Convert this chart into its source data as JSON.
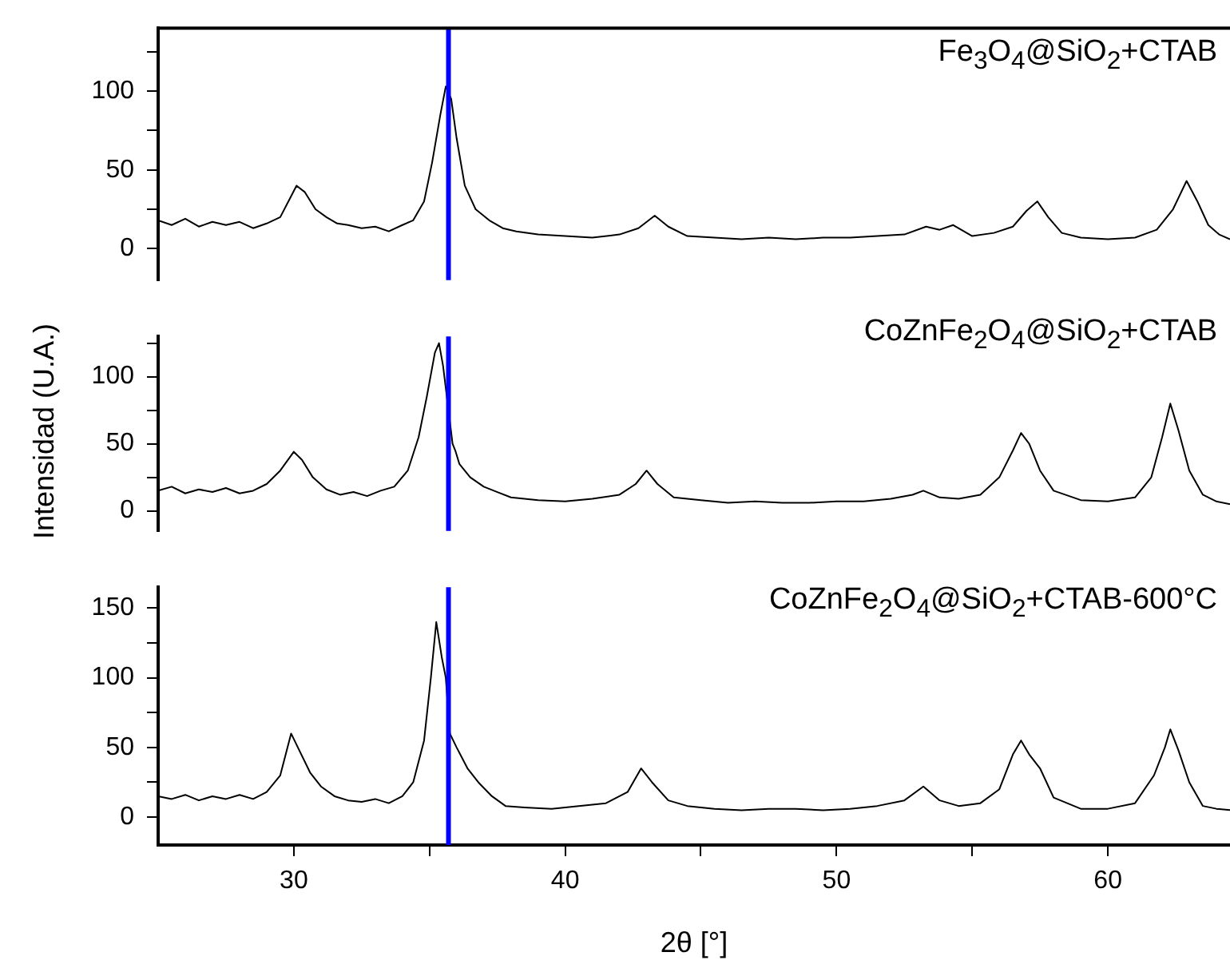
{
  "chart_data": [
    {
      "type": "line",
      "xlim": [
        25,
        64.5
      ],
      "ylim": [
        -20,
        140
      ],
      "yticks": [
        0,
        {
          "value": 25,
          "label": null
        },
        50,
        {
          "value": 75,
          "label": null
        },
        100,
        {
          "value": 125,
          "label": null
        }
      ],
      "tick_labels": "y",
      "grid": false,
      "legend": false,
      "marker": "none",
      "ref_lines": [
        {
          "axis": "x",
          "value": 35.7,
          "color": "#0000ff"
        }
      ],
      "series": [
        {
          "name": "Fe$_{3}$O$_{4}$@SiO$_{2}$+CTAB",
          "color": "#000000",
          "x": [
            25,
            25.5,
            26,
            26.5,
            27,
            27.5,
            28,
            28.5,
            29,
            29.5,
            29.8,
            30.1,
            30.4,
            30.8,
            31.2,
            31.6,
            32,
            32.5,
            33,
            33.5,
            34,
            34.4,
            34.8,
            35.1,
            35.4,
            35.6,
            35.8,
            36,
            36.3,
            36.7,
            37.2,
            37.7,
            38.2,
            39,
            40,
            41,
            42,
            42.7,
            43.3,
            43.8,
            44.5,
            45.5,
            46.5,
            47.5,
            48.5,
            49.5,
            50.5,
            51.5,
            52.5,
            53.3,
            53.8,
            54.3,
            55,
            55.8,
            56.5,
            57,
            57.4,
            57.8,
            58.3,
            59,
            60,
            61,
            61.8,
            62.4,
            62.9,
            63.3,
            63.7,
            64.1,
            64.5
          ],
          "values": [
            18,
            15,
            19,
            14,
            17,
            15,
            17,
            13,
            16,
            20,
            30,
            40,
            36,
            25,
            20,
            16,
            15,
            13,
            14,
            11,
            15,
            18,
            30,
            55,
            85,
            103,
            95,
            70,
            40,
            25,
            18,
            13,
            11,
            9,
            8,
            7,
            9,
            13,
            21,
            14,
            8,
            7,
            6,
            7,
            6,
            7,
            7,
            8,
            9,
            14,
            12,
            15,
            8,
            10,
            14,
            24,
            30,
            20,
            10,
            7,
            6,
            7,
            12,
            25,
            43,
            30,
            15,
            9,
            6
          ]
        }
      ]
    },
    {
      "type": "line",
      "xlim": [
        25,
        64.5
      ],
      "ylim": [
        -15,
        130
      ],
      "yticks": [
        0,
        {
          "value": 25,
          "label": null
        },
        50,
        {
          "value": 75,
          "label": null
        },
        100,
        {
          "value": 125,
          "label": null
        }
      ],
      "tick_labels": "y",
      "grid": false,
      "legend": false,
      "marker": "none",
      "ylabel": "Intensidad (U.A.)",
      "ref_lines": [
        {
          "axis": "x",
          "value": 35.7,
          "color": "#0000ff"
        }
      ],
      "series": [
        {
          "name": "CoZnFe$_{2}$O$_{4}$@SiO$_{2}$+CTAB",
          "color": "#000000",
          "x": [
            25,
            25.5,
            26,
            26.5,
            27,
            27.5,
            28,
            28.5,
            29,
            29.5,
            30,
            30.3,
            30.7,
            31.2,
            31.7,
            32.2,
            32.7,
            33.2,
            33.7,
            34.2,
            34.6,
            34.9,
            35.2,
            35.35,
            35.5,
            35.85,
            35.95,
            36.1,
            36.5,
            37,
            37.5,
            38,
            39,
            40,
            41,
            42,
            42.6,
            43,
            43.4,
            44,
            45,
            46,
            47,
            48,
            49,
            50,
            51,
            52,
            52.8,
            53.2,
            53.8,
            54.5,
            55.3,
            56,
            56.5,
            56.8,
            57.1,
            57.5,
            58,
            59,
            60,
            61,
            61.6,
            62,
            62.3,
            62.6,
            63,
            63.5,
            64,
            64.5
          ],
          "values": [
            15,
            18,
            13,
            16,
            14,
            17,
            13,
            15,
            20,
            30,
            44,
            38,
            25,
            16,
            12,
            14,
            11,
            15,
            18,
            30,
            55,
            85,
            118,
            125,
            108,
            50,
            45,
            35,
            25,
            18,
            14,
            10,
            8,
            7,
            9,
            12,
            20,
            30,
            20,
            10,
            8,
            6,
            7,
            6,
            6,
            7,
            7,
            9,
            12,
            15,
            10,
            9,
            12,
            25,
            45,
            58,
            50,
            30,
            15,
            8,
            7,
            10,
            25,
            55,
            80,
            60,
            30,
            12,
            7,
            5
          ]
        }
      ]
    },
    {
      "type": "line",
      "xlim": [
        25,
        64.5
      ],
      "ylim": [
        -20,
        165
      ],
      "yticks": [
        0,
        {
          "value": 25,
          "label": null
        },
        50,
        {
          "value": 75,
          "label": null
        },
        100,
        {
          "value": 125,
          "label": null
        },
        150
      ],
      "xticks": [
        30,
        {
          "value": 35,
          "label": null
        },
        40,
        {
          "value": 45,
          "label": null
        },
        50,
        {
          "value": 55,
          "label": null
        },
        60
      ],
      "xlabel": "2θ [°]",
      "grid": false,
      "legend": false,
      "marker": "none",
      "ref_lines": [
        {
          "axis": "x",
          "value": 35.7,
          "color": "#0000ff"
        }
      ],
      "series": [
        {
          "name": "CoZnFe$_{2}$O$_{4}$@SiO$_{2}$+CTAB-600°C",
          "color": "#000000",
          "x": [
            25,
            25.5,
            26,
            26.5,
            27,
            27.5,
            28,
            28.5,
            29,
            29.5,
            29.9,
            30.2,
            30.6,
            31,
            31.5,
            32,
            32.5,
            33,
            33.5,
            34,
            34.4,
            34.8,
            35.05,
            35.25,
            35.45,
            35.6,
            35.75,
            36,
            36.4,
            36.8,
            37.3,
            37.8,
            38.5,
            39.5,
            40.5,
            41.5,
            42.3,
            42.8,
            43.2,
            43.8,
            44.5,
            45.5,
            46.5,
            47.5,
            48.5,
            49.5,
            50.5,
            51.5,
            52.5,
            53.2,
            53.8,
            54.5,
            55.3,
            56,
            56.5,
            56.8,
            57.1,
            57.5,
            58,
            59,
            60,
            61,
            61.7,
            62.1,
            62.3,
            62.6,
            63,
            63.5,
            64,
            64.5
          ],
          "values": [
            15,
            13,
            16,
            12,
            15,
            13,
            16,
            13,
            18,
            30,
            60,
            48,
            32,
            22,
            15,
            12,
            11,
            13,
            10,
            15,
            25,
            55,
            100,
            140,
            115,
            100,
            60,
            50,
            35,
            25,
            15,
            8,
            7,
            6,
            8,
            10,
            18,
            35,
            25,
            12,
            8,
            6,
            5,
            6,
            6,
            5,
            6,
            8,
            12,
            22,
            12,
            8,
            10,
            20,
            45,
            55,
            45,
            35,
            14,
            6,
            6,
            10,
            30,
            50,
            63,
            48,
            25,
            8,
            6,
            5
          ]
        }
      ]
    }
  ]
}
